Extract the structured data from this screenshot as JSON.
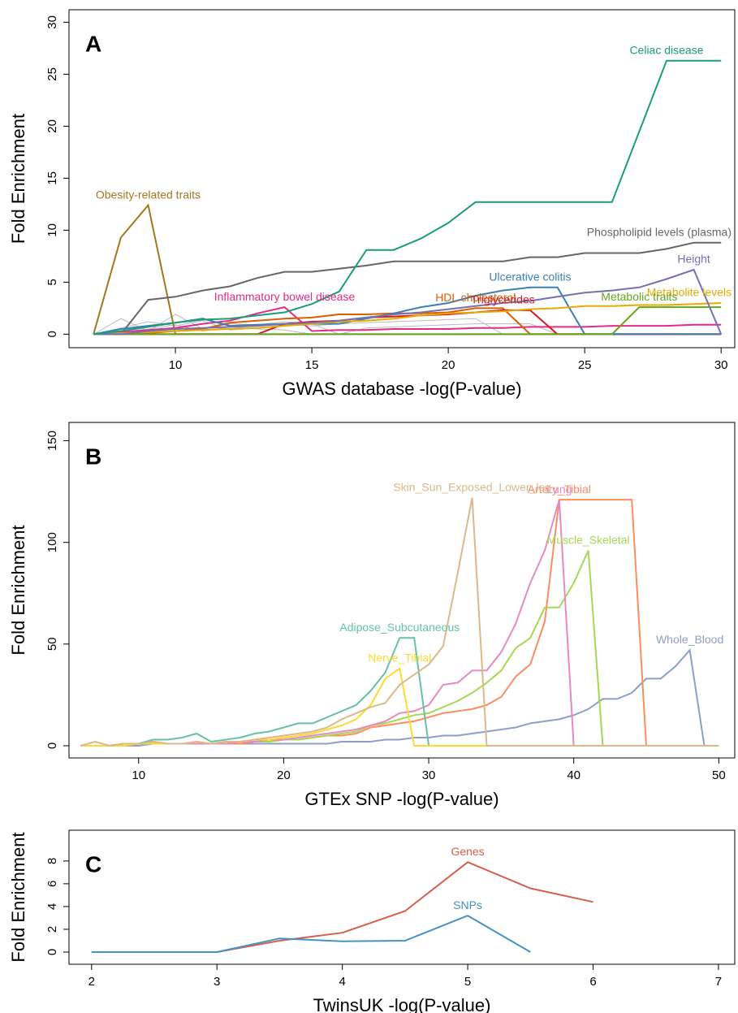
{
  "chart_data": [
    {
      "type": "line",
      "label": "A",
      "xlabel": "GWAS database -log(P-value)",
      "ylabel": "Fold Enrichment",
      "xlim": [
        6.1,
        30.5
      ],
      "ylim": [
        -1.3,
        31.2
      ],
      "xticks": [
        10,
        15,
        20,
        25,
        30
      ],
      "yticks": [
        0,
        5,
        10,
        15,
        20,
        25,
        30
      ],
      "x": [
        7,
        8,
        9,
        10,
        11,
        12,
        13,
        14,
        15,
        16,
        17,
        18,
        19,
        20,
        21,
        22,
        23,
        24,
        25,
        26,
        27,
        28,
        29,
        30
      ],
      "series": [
        {
          "color": "#bbbbbb",
          "values": [
            0,
            1.5,
            0.3,
            1.9,
            0.5,
            1,
            0.9,
            1.2,
            1,
            0,
            0,
            0,
            0,
            0,
            0,
            0,
            0,
            0,
            0,
            0,
            0,
            0,
            0,
            0
          ]
        },
        {
          "color": "#bbbbbb",
          "values": [
            0,
            0.6,
            1.2,
            0.8,
            1.3,
            0.4,
            0.6,
            0.9,
            0.8,
            1,
            1.1,
            1.2,
            1.3,
            1.4,
            1.5,
            0,
            0,
            0,
            0,
            0,
            0,
            0,
            0,
            0
          ]
        },
        {
          "color": "#bbbbbb",
          "values": [
            0,
            0.2,
            0.5,
            0.9,
            0.3,
            0.7,
            0.5,
            0.4,
            0,
            0,
            0.6,
            0.7,
            0.8,
            0.9,
            1,
            1,
            1,
            0,
            0,
            0,
            0,
            0,
            0,
            0
          ]
        },
        {
          "name": "Obesity-related traits",
          "color": "#a6761d",
          "values": [
            0,
            9.3,
            12.4,
            0,
            0,
            0,
            0,
            0,
            0,
            0,
            0,
            0,
            0,
            0,
            0,
            0,
            0,
            0,
            0,
            0,
            0,
            0,
            0,
            0
          ]
        },
        {
          "name": "Phospholipid levels (plasma)",
          "color": "#666666",
          "values": [
            0,
            0,
            3.3,
            3.6,
            4.2,
            4.6,
            5.4,
            6,
            6,
            6.3,
            6.6,
            7,
            7,
            7,
            7,
            7,
            7.4,
            7.4,
            7.8,
            7.8,
            7.8,
            8.2,
            8.8,
            8.8
          ]
        },
        {
          "name": "Inflammatory bowel disease",
          "color": "#e7298a",
          "values": [
            0,
            0.2,
            0.4,
            0.6,
            1,
            1.3,
            2,
            2.6,
            0.3,
            0.4,
            0.4,
            0.5,
            0.5,
            0.5,
            0.6,
            0.6,
            0.7,
            0.7,
            0.7,
            0.8,
            0.8,
            0.8,
            0.9,
            0.9
          ]
        },
        {
          "name": "HDL cholesterol",
          "color": "#d95f02",
          "values": [
            0,
            0,
            0.1,
            0.3,
            0.5,
            1.1,
            1.3,
            1.5,
            1.6,
            1.9,
            1.9,
            2,
            2,
            2.1,
            2.5,
            2.5,
            0,
            0,
            0,
            0,
            0,
            0,
            0,
            0
          ]
        },
        {
          "name": "Triglycerides",
          "color": "#d7191c",
          "values": [
            0,
            0,
            0,
            0,
            0,
            0,
            0,
            1,
            1.2,
            1.3,
            1.6,
            1.7,
            1.8,
            1.9,
            2.1,
            2.3,
            2.3,
            0,
            0,
            0,
            0,
            0,
            0,
            0
          ]
        },
        {
          "name": "Ulcerative colitis",
          "color": "#3a7fb8",
          "values": [
            0,
            0.5,
            0.8,
            1.1,
            1.5,
            0.8,
            0.9,
            1,
            1,
            1,
            1.5,
            2,
            2.6,
            3,
            3.7,
            4.2,
            4.5,
            4.5,
            0,
            0,
            0,
            0,
            0,
            0
          ]
        },
        {
          "name": "Metabolite levels",
          "color": "#e6ab02",
          "values": [
            0,
            0.1,
            0.2,
            0.3,
            0.4,
            0.5,
            0.6,
            0.8,
            1,
            1.2,
            1.3,
            1.5,
            1.8,
            2,
            2.1,
            2.2,
            2.4,
            2.5,
            2.7,
            2.7,
            2.8,
            2.8,
            2.9,
            3
          ]
        },
        {
          "name": "Metabolic traits",
          "color": "#66a61e",
          "values": [
            0,
            0,
            0,
            0,
            0,
            0,
            0,
            0,
            0,
            0,
            0,
            0,
            0,
            0,
            0,
            0,
            0,
            0,
            0,
            0,
            2.6,
            2.6,
            2.6,
            2.6
          ]
        },
        {
          "name": "Height",
          "color": "#7570b3",
          "values": [
            0,
            0,
            0.3,
            0.5,
            0.6,
            0.7,
            0.8,
            1,
            1.1,
            1.3,
            1.6,
            1.9,
            2.1,
            2.4,
            2.7,
            3,
            3.2,
            3.6,
            4,
            4.2,
            4.5,
            5.3,
            6.2,
            0
          ]
        },
        {
          "name": "Celiac disease",
          "color": "#1b9e77",
          "values": [
            0,
            0.3,
            0.7,
            1.1,
            1.4,
            1.5,
            1.8,
            2.1,
            2.9,
            4.1,
            8.1,
            8.1,
            9.2,
            10.7,
            12.7,
            12.7,
            12.7,
            12.7,
            12.7,
            12.7,
            19.5,
            26.3,
            26.3,
            26.3
          ]
        }
      ]
    },
    {
      "type": "line",
      "label": "B",
      "xlabel": "GTEx SNP -log(P-value)",
      "ylabel": "Fold Enrichment",
      "xlim": [
        5.2,
        51.1
      ],
      "ylim": [
        -6,
        159
      ],
      "xticks": [
        10,
        20,
        30,
        40,
        50
      ],
      "yticks": [
        0,
        50,
        100,
        150
      ],
      "x": [
        6,
        7,
        8,
        9,
        10,
        11,
        12,
        13,
        14,
        15,
        16,
        17,
        18,
        19,
        20,
        21,
        22,
        23,
        24,
        25,
        26,
        27,
        28,
        29,
        30,
        31,
        32,
        33,
        34,
        35,
        36,
        37,
        38,
        39,
        40,
        41,
        42,
        43,
        44,
        45,
        46,
        47,
        48,
        49,
        50
      ],
      "series": [
        {
          "name": "Whole_Blood",
          "color": "#8da0cb",
          "values": [
            0,
            0,
            0,
            0,
            0,
            1,
            1,
            1,
            1,
            1,
            1,
            1,
            1,
            1,
            1,
            1,
            1,
            1,
            2,
            2,
            2,
            3,
            3,
            4,
            4,
            5,
            5,
            6,
            7,
            8,
            9,
            11,
            12,
            13,
            15,
            18,
            23,
            23,
            26,
            33,
            33,
            39,
            47,
            0,
            0
          ]
        },
        {
          "name": "Artery_Tibial",
          "color": "#fc8d62",
          "values": [
            0,
            0,
            0,
            1,
            1,
            1,
            1,
            1,
            1,
            1,
            1,
            1,
            2,
            2,
            3,
            3,
            4,
            5,
            5,
            6,
            9,
            10,
            11,
            12,
            14,
            16,
            17,
            18,
            20,
            24,
            34,
            40,
            61,
            121,
            121,
            121,
            121,
            121,
            121,
            0,
            0,
            0,
            0,
            0,
            0
          ]
        },
        {
          "name": "Muscle_Skeletal",
          "color": "#a6d854",
          "values": [
            0,
            0,
            0,
            1,
            1,
            2,
            1,
            1,
            1,
            1,
            1,
            2,
            2,
            2,
            3,
            3,
            4,
            5,
            6,
            7,
            10,
            11,
            13,
            15,
            16,
            19,
            22,
            26,
            31,
            37,
            48,
            53,
            68,
            68,
            80,
            96,
            0,
            0,
            0,
            0,
            0,
            0,
            0,
            0,
            0
          ]
        },
        {
          "name": "Lung",
          "color": "#e78ac3",
          "values": [
            0,
            0,
            0,
            1,
            1,
            2,
            1,
            1,
            1,
            1,
            1,
            2,
            2,
            3,
            3,
            4,
            5,
            6,
            7,
            8,
            10,
            12,
            16,
            17,
            20,
            30,
            31,
            37,
            37,
            46,
            60,
            80,
            96,
            121,
            0,
            0,
            0,
            0,
            0,
            0,
            0,
            0,
            0,
            0,
            0
          ]
        },
        {
          "name": "Adipose_Subcutaneous",
          "color": "#66c2a5",
          "values": [
            0,
            0,
            0,
            1,
            1,
            3,
            3,
            4,
            6,
            2,
            3,
            4,
            6,
            7,
            9,
            11,
            11,
            14,
            17,
            20,
            27,
            36,
            53,
            53,
            0,
            0,
            0,
            0,
            0,
            0,
            0,
            0,
            0,
            0,
            0,
            0,
            0,
            0,
            0,
            0,
            0,
            0,
            0,
            0,
            0
          ]
        },
        {
          "name": "Nerve_Tibial",
          "color": "#ffd92f",
          "values": [
            0,
            0,
            0,
            0,
            1,
            1,
            1,
            1,
            2,
            1,
            2,
            2,
            3,
            3,
            4,
            5,
            6,
            8,
            10,
            13,
            20,
            33,
            38,
            0,
            0,
            0,
            0,
            0,
            0,
            0,
            0,
            0,
            0,
            0,
            0,
            0,
            0,
            0,
            0,
            0,
            0,
            0,
            0,
            0,
            0
          ]
        },
        {
          "name": "Skin_Sun_Exposed_Lower_leg",
          "color": "#dcb98a",
          "values": [
            0,
            2,
            0,
            1,
            1,
            2,
            1,
            1,
            2,
            1,
            2,
            2,
            3,
            4,
            5,
            6,
            7,
            9,
            13,
            16,
            19,
            21,
            30,
            35,
            40,
            49,
            85,
            122,
            0,
            0,
            0,
            0,
            0,
            0,
            0,
            0,
            0,
            0,
            0,
            0,
            0,
            0,
            0,
            0,
            0
          ]
        }
      ]
    },
    {
      "type": "line",
      "label": "C",
      "xlabel": "TwinsUK -log(P-value)",
      "ylabel": "Fold Enrichment",
      "xlim": [
        1.82,
        7.13
      ],
      "ylim": [
        -1.07,
        10.7
      ],
      "xticks": [
        2,
        3,
        4,
        5,
        6,
        7
      ],
      "yticks": [
        0,
        2,
        4,
        6,
        8
      ],
      "x": [
        2,
        2.5,
        3,
        3.5,
        4,
        4.5,
        5,
        5.5,
        6
      ],
      "series": [
        {
          "name": "Genes",
          "color": "#d6604d",
          "values": [
            null,
            null,
            0,
            1,
            1.7,
            3.6,
            7.9,
            5.6,
            4.4
          ]
        },
        {
          "name": "SNPs",
          "color": "#4393c3",
          "values": [
            0,
            0,
            0,
            1.2,
            0.95,
            1.0,
            3.2,
            0,
            null
          ]
        }
      ]
    }
  ]
}
